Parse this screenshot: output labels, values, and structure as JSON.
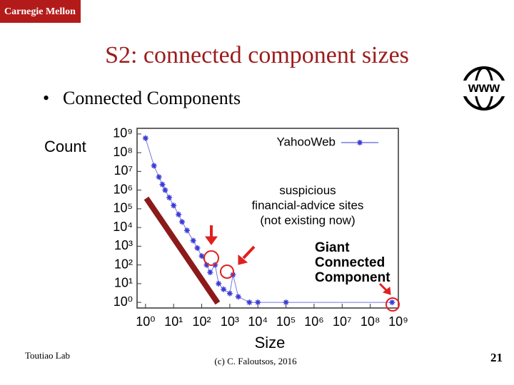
{
  "slide": {
    "logo": "Carnegie Mellon",
    "title": "S2: connected component sizes",
    "bullet": "Connected Components",
    "icon_text": "www",
    "footer_left": "Toutiao Lab",
    "footer_center": "(c) C. Faloutsos, 2016",
    "page_number": 21
  },
  "chart_data": {
    "type": "scatter",
    "ylabel": "Count",
    "xlabel": "Size",
    "x_scale": "log",
    "y_scale": "log",
    "grid": false,
    "legend": "top-right",
    "xlim": [
      0.5,
      1000000000
    ],
    "ylim": [
      0.5,
      2000000000
    ],
    "xticks": [
      {
        "value": 1,
        "label": "10⁰"
      },
      {
        "value": 10,
        "label": "10¹"
      },
      {
        "value": 100,
        "label": "10²"
      },
      {
        "value": 1000,
        "label": "10³"
      },
      {
        "value": 10000,
        "label": "10⁴"
      },
      {
        "value": 100000,
        "label": "10⁵"
      },
      {
        "value": 1000000,
        "label": "10⁶"
      },
      {
        "value": 10000000,
        "label": "10⁷"
      },
      {
        "value": 100000000,
        "label": "10⁸"
      },
      {
        "value": 1000000000,
        "label": "10⁹"
      }
    ],
    "yticks": [
      {
        "value": 1,
        "label": "10⁰"
      },
      {
        "value": 10,
        "label": "10¹"
      },
      {
        "value": 100,
        "label": "10²"
      },
      {
        "value": 1000,
        "label": "10³"
      },
      {
        "value": 10000,
        "label": "10⁴"
      },
      {
        "value": 100000,
        "label": "10⁵"
      },
      {
        "value": 1000000,
        "label": "10⁶"
      },
      {
        "value": 10000000,
        "label": "10⁷"
      },
      {
        "value": 100000000,
        "label": "10⁸"
      },
      {
        "value": 1000000000,
        "label": "10⁹"
      }
    ],
    "series": [
      {
        "name": "YahooWeb",
        "color": "#3a3ad6",
        "x": [
          1,
          2,
          3,
          4,
          5,
          7,
          10,
          15,
          20,
          30,
          50,
          70,
          100,
          150,
          200,
          300,
          400,
          600,
          1000,
          1300,
          2000,
          5000,
          10000,
          100000,
          600000000
        ],
        "values": [
          600000000,
          20000000,
          5000000,
          2000000,
          1000000,
          400000,
          150000,
          50000,
          20000,
          7000,
          2000,
          800,
          300,
          100,
          40,
          100,
          10,
          5,
          3,
          30,
          2,
          1,
          1,
          1,
          1
        ]
      }
    ],
    "annotations": [
      {
        "lines": [
          "suspicious",
          "financial-advice sites",
          "(not existing now)"
        ]
      },
      {
        "lines": [
          "Giant",
          "Connected",
          "Component"
        ]
      }
    ]
  }
}
